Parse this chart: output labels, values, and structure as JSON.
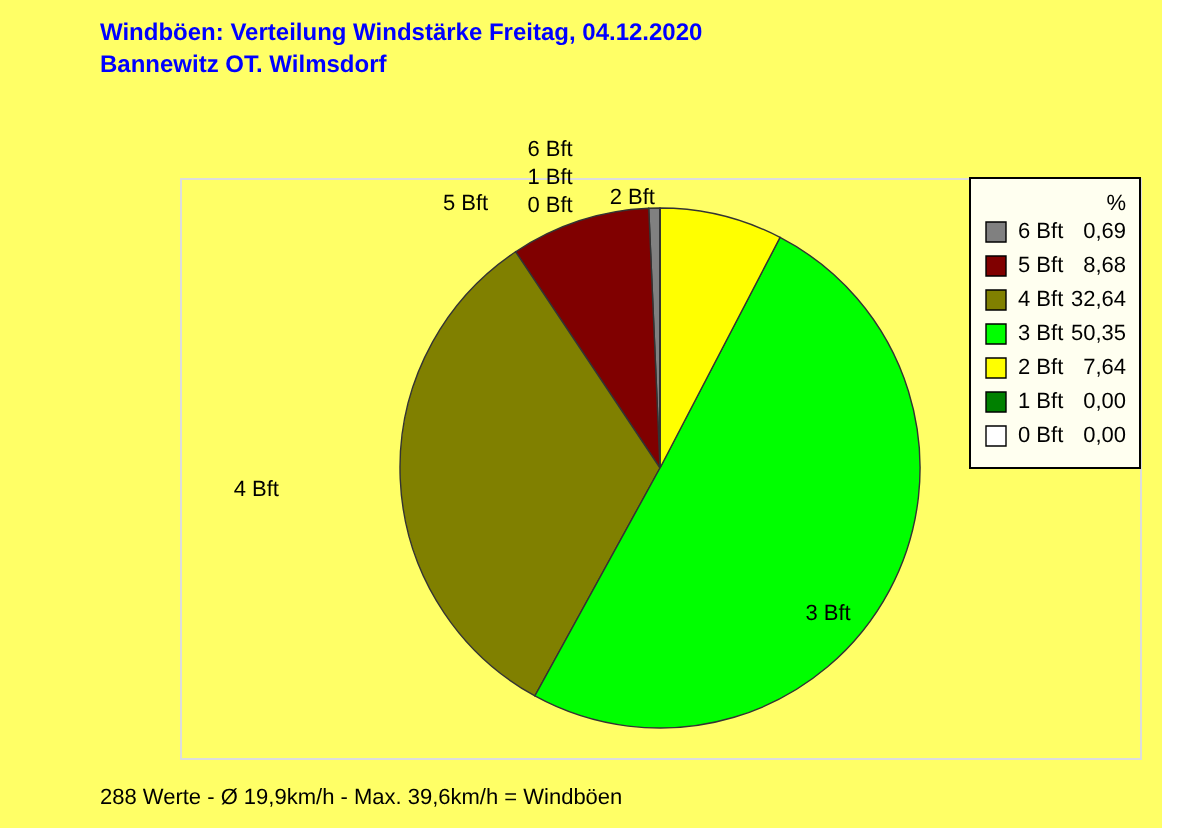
{
  "chart_data": {
    "type": "pie",
    "title": "Windböen: Verteilung Windstärke  Freitag, 04.12.2020",
    "subtitle": "Bannewitz OT. Wilmsdorf",
    "categories": [
      "6 Bft",
      "5 Bft",
      "4 Bft",
      "3 Bft",
      "2 Bft",
      "1 Bft",
      "0 Bft"
    ],
    "values": [
      0.69,
      8.68,
      32.64,
      50.35,
      7.64,
      0.0,
      0.0
    ],
    "colors": [
      "#808080",
      "#800000",
      "#808000",
      "#00ff00",
      "#ffff00",
      "#008000",
      "#ffffff"
    ],
    "value_labels": [
      "0,69",
      "8,68",
      "32,64",
      "50,35",
      "7,64",
      "0,00",
      "0,00"
    ],
    "legend_title": "%",
    "legend": "top right",
    "annotations": [
      "288 Werte   -   Ø 19,9km/h  -  Max. 39,6km/h = Windböen"
    ]
  }
}
